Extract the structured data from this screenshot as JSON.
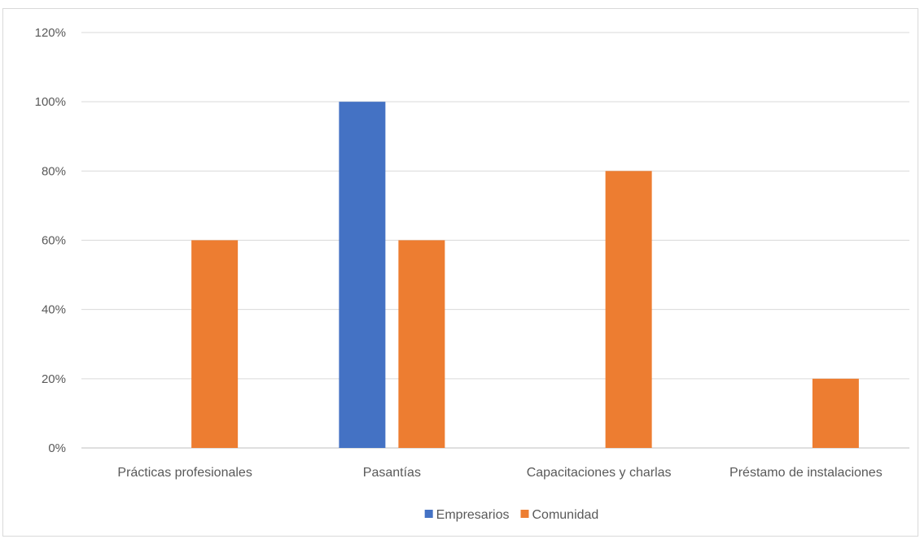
{
  "chart_data": {
    "type": "bar",
    "title": "",
    "xlabel": "",
    "ylabel": "",
    "categories": [
      "Prácticas profesionales",
      "Pasantías",
      "Capacitaciones y charlas",
      "Préstamo de instalaciones"
    ],
    "series": [
      {
        "name": "Empresarios",
        "values": [
          0,
          100,
          0,
          0
        ],
        "color": "#4472c4"
      },
      {
        "name": "Comunidad",
        "values": [
          60,
          60,
          80,
          20
        ],
        "color": "#ed7d31"
      }
    ],
    "ylim": [
      0,
      120
    ],
    "yticks": [
      "0%",
      "20%",
      "40%",
      "60%",
      "80%",
      "100%",
      "120%"
    ],
    "grid": true,
    "legend_position": "bottom"
  }
}
